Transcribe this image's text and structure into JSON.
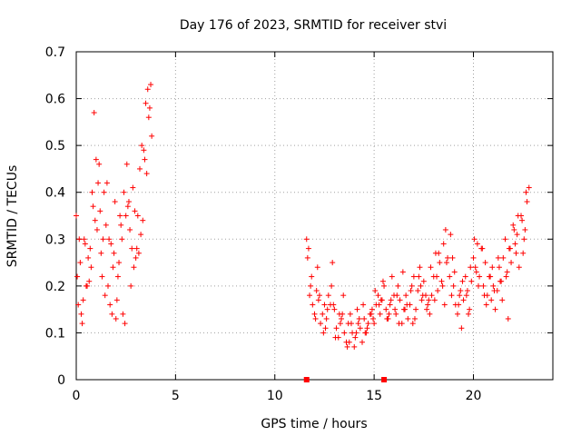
{
  "chart_data": {
    "type": "scatter",
    "title": "Day 176 of 2023, SRMTID for receiver stvi",
    "xlabel": "GPS time / hours",
    "ylabel": "SRMTID / TECUs",
    "xlim": [
      0,
      24
    ],
    "ylim": [
      0,
      0.7
    ],
    "x_ticks": [
      0,
      5,
      10,
      15,
      20
    ],
    "x_tick_labels": [
      "0",
      "5",
      "10",
      "15",
      "20"
    ],
    "y_ticks": [
      0,
      0.1,
      0.2,
      0.3,
      0.4,
      0.5,
      0.6,
      0.7
    ],
    "y_tick_labels": [
      "0",
      "0.1",
      "0.2",
      "0.3",
      "0.4",
      "0.5",
      "0.6",
      "0.7"
    ],
    "grid": true,
    "marker": "plus",
    "color": "#ff0000",
    "series": [
      {
        "name": "SRMTID",
        "x": [
          0.0,
          0.1,
          0.2,
          0.3,
          0.4,
          0.5,
          0.6,
          0.7,
          0.8,
          0.9,
          1.0,
          1.1,
          1.2,
          1.3,
          1.4,
          1.5,
          1.6,
          1.7,
          1.8,
          1.9,
          2.0,
          2.1,
          2.2,
          2.3,
          2.4,
          2.5,
          2.6,
          2.7,
          2.8,
          2.9,
          3.0,
          3.1,
          3.2,
          3.3,
          3.4,
          3.5,
          3.6,
          3.7,
          3.8,
          0.05,
          0.25,
          0.45,
          0.65,
          0.85,
          1.05,
          1.25,
          1.45,
          1.65,
          1.85,
          2.05,
          2.25,
          2.45,
          2.65,
          2.85,
          3.05,
          3.25,
          3.45,
          3.65,
          0.15,
          0.35,
          0.55,
          0.75,
          0.95,
          1.15,
          1.35,
          1.55,
          1.75,
          1.95,
          2.15,
          2.35,
          2.55,
          2.75,
          2.95,
          3.15,
          3.35,
          3.55,
          3.75,
          11.6,
          11.7,
          11.8,
          11.9,
          12.0,
          12.1,
          12.2,
          12.3,
          12.4,
          12.5,
          12.6,
          12.7,
          12.8,
          12.9,
          13.0,
          13.1,
          13.2,
          13.3,
          13.4,
          13.5,
          13.6,
          13.7,
          13.8,
          13.9,
          14.0,
          14.1,
          14.2,
          14.3,
          14.4,
          14.5,
          14.6,
          14.7,
          14.8,
          14.9,
          15.0,
          15.1,
          15.2,
          15.3,
          15.4,
          15.5,
          15.6,
          15.7,
          15.8,
          15.9,
          16.0,
          16.1,
          16.2,
          16.3,
          16.4,
          16.5,
          16.6,
          16.7,
          16.8,
          16.9,
          17.0,
          17.1,
          17.2,
          17.3,
          17.4,
          17.5,
          17.6,
          17.7,
          17.8,
          17.9,
          18.0,
          18.1,
          18.2,
          18.3,
          18.4,
          18.5,
          18.6,
          18.7,
          18.8,
          18.9,
          19.0,
          19.1,
          19.2,
          19.3,
          19.4,
          19.5,
          19.6,
          19.7,
          19.8,
          19.9,
          20.0,
          20.1,
          20.2,
          20.3,
          20.4,
          20.5,
          20.6,
          20.7,
          20.8,
          20.9,
          21.0,
          21.1,
          21.2,
          21.3,
          21.4,
          21.5,
          21.6,
          21.7,
          21.8,
          21.9,
          22.0,
          22.1,
          22.2,
          22.3,
          22.4,
          22.5,
          22.6,
          22.7,
          22.8,
          11.65,
          11.85,
          12.05,
          12.25,
          12.45,
          12.65,
          12.85,
          13.05,
          13.25,
          13.45,
          13.65,
          13.85,
          14.05,
          14.25,
          14.45,
          14.65,
          14.85,
          15.05,
          15.25,
          15.45,
          15.65,
          15.85,
          16.05,
          16.25,
          16.45,
          16.65,
          16.85,
          17.05,
          17.25,
          17.45,
          17.65,
          17.85,
          18.05,
          18.25,
          18.45,
          18.65,
          18.85,
          19.05,
          19.25,
          19.45,
          19.65,
          19.85,
          20.05,
          20.25,
          20.45,
          20.65,
          20.85,
          21.05,
          21.25,
          21.45,
          21.65,
          21.85,
          22.05,
          22.25,
          22.45,
          22.65,
          11.75,
          12.15,
          12.55,
          12.95,
          13.35,
          13.75,
          14.15,
          14.55,
          14.95,
          15.35,
          15.75,
          16.15,
          16.55,
          16.95,
          17.35,
          17.75,
          18.15,
          18.55,
          18.95,
          19.35,
          19.75,
          20.15,
          20.55,
          20.95,
          21.35,
          21.75,
          22.15,
          22.55
        ],
        "y": [
          0.35,
          0.16,
          0.25,
          0.12,
          0.3,
          0.2,
          0.26,
          0.28,
          0.4,
          0.57,
          0.47,
          0.42,
          0.36,
          0.22,
          0.4,
          0.33,
          0.2,
          0.16,
          0.14,
          0.27,
          0.13,
          0.22,
          0.35,
          0.3,
          0.4,
          0.35,
          0.37,
          0.32,
          0.28,
          0.24,
          0.26,
          0.35,
          0.45,
          0.5,
          0.49,
          0.59,
          0.62,
          0.58,
          0.52,
          0.22,
          0.14,
          0.29,
          0.21,
          0.37,
          0.32,
          0.27,
          0.18,
          0.3,
          0.24,
          0.17,
          0.33,
          0.12,
          0.38,
          0.41,
          0.28,
          0.31,
          0.47,
          0.56,
          0.3,
          0.17,
          0.2,
          0.24,
          0.34,
          0.46,
          0.3,
          0.42,
          0.29,
          0.38,
          0.25,
          0.14,
          0.46,
          0.2,
          0.36,
          0.27,
          0.34,
          0.44,
          0.63,
          0.3,
          0.28,
          0.2,
          0.16,
          0.14,
          0.19,
          0.17,
          0.12,
          0.14,
          0.16,
          0.13,
          0.18,
          0.16,
          0.25,
          0.15,
          0.11,
          0.09,
          0.12,
          0.14,
          0.1,
          0.08,
          0.12,
          0.14,
          0.1,
          0.07,
          0.1,
          0.12,
          0.11,
          0.08,
          0.13,
          0.1,
          0.12,
          0.14,
          0.15,
          0.12,
          0.16,
          0.18,
          0.14,
          0.17,
          0.2,
          0.15,
          0.13,
          0.16,
          0.22,
          0.18,
          0.14,
          0.2,
          0.17,
          0.12,
          0.15,
          0.18,
          0.13,
          0.16,
          0.2,
          0.22,
          0.15,
          0.19,
          0.24,
          0.17,
          0.21,
          0.18,
          0.16,
          0.14,
          0.18,
          0.22,
          0.27,
          0.19,
          0.25,
          0.21,
          0.29,
          0.32,
          0.26,
          0.22,
          0.18,
          0.2,
          0.16,
          0.14,
          0.18,
          0.11,
          0.17,
          0.22,
          0.19,
          0.15,
          0.21,
          0.26,
          0.24,
          0.29,
          0.22,
          0.28,
          0.2,
          0.25,
          0.18,
          0.22,
          0.17,
          0.2,
          0.15,
          0.19,
          0.24,
          0.21,
          0.26,
          0.3,
          0.23,
          0.28,
          0.25,
          0.33,
          0.29,
          0.31,
          0.24,
          0.35,
          0.27,
          0.32,
          0.38,
          0.41,
          0.26,
          0.22,
          0.13,
          0.18,
          0.1,
          0.15,
          0.2,
          0.09,
          0.14,
          0.18,
          0.07,
          0.12,
          0.09,
          0.13,
          0.16,
          0.11,
          0.14,
          0.19,
          0.16,
          0.21,
          0.13,
          0.17,
          0.15,
          0.12,
          0.23,
          0.16,
          0.19,
          0.13,
          0.22,
          0.18,
          0.15,
          0.24,
          0.17,
          0.27,
          0.2,
          0.25,
          0.31,
          0.23,
          0.16,
          0.21,
          0.18,
          0.24,
          0.3,
          0.2,
          0.28,
          0.16,
          0.22,
          0.19,
          0.26,
          0.17,
          0.22,
          0.28,
          0.32,
          0.35,
          0.34,
          0.4,
          0.18,
          0.24,
          0.11,
          0.16,
          0.13,
          0.08,
          0.15,
          0.1,
          0.13,
          0.17,
          0.14,
          0.18,
          0.15,
          0.12,
          0.2,
          0.17,
          0.22,
          0.16,
          0.26,
          0.19,
          0.14,
          0.23,
          0.18,
          0.24,
          0.21,
          0.13,
          0.27,
          0.3
        ]
      }
    ],
    "annotations": [
      {
        "type": "square-marker",
        "x": 11.6,
        "y": 0
      },
      {
        "type": "square-marker",
        "x": 15.5,
        "y": 0
      }
    ]
  }
}
